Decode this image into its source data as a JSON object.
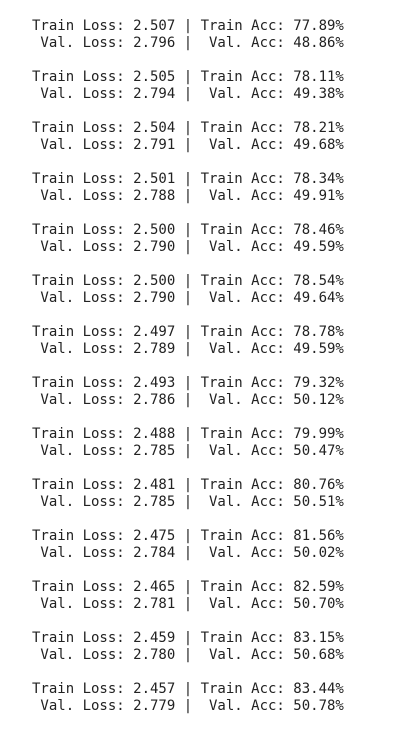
{
  "log": {
    "blocks": [
      {
        "train": "Train Loss: 2.507 | Train Acc: 77.89%",
        "val": " Val. Loss: 2.796 |  Val. Acc: 48.86%"
      },
      {
        "train": "Train Loss: 2.505 | Train Acc: 78.11%",
        "val": " Val. Loss: 2.794 |  Val. Acc: 49.38%"
      },
      {
        "train": "Train Loss: 2.504 | Train Acc: 78.21%",
        "val": " Val. Loss: 2.791 |  Val. Acc: 49.68%"
      },
      {
        "train": "Train Loss: 2.501 | Train Acc: 78.34%",
        "val": " Val. Loss: 2.788 |  Val. Acc: 49.91%"
      },
      {
        "train": "Train Loss: 2.500 | Train Acc: 78.46%",
        "val": " Val. Loss: 2.790 |  Val. Acc: 49.59%"
      },
      {
        "train": "Train Loss: 2.500 | Train Acc: 78.54%",
        "val": " Val. Loss: 2.790 |  Val. Acc: 49.64%"
      },
      {
        "train": "Train Loss: 2.497 | Train Acc: 78.78%",
        "val": " Val. Loss: 2.789 |  Val. Acc: 49.59%"
      },
      {
        "train": "Train Loss: 2.493 | Train Acc: 79.32%",
        "val": " Val. Loss: 2.786 |  Val. Acc: 50.12%"
      },
      {
        "train": "Train Loss: 2.488 | Train Acc: 79.99%",
        "val": " Val. Loss: 2.785 |  Val. Acc: 50.47%"
      },
      {
        "train": "Train Loss: 2.481 | Train Acc: 80.76%",
        "val": " Val. Loss: 2.785 |  Val. Acc: 50.51%"
      },
      {
        "train": "Train Loss: 2.475 | Train Acc: 81.56%",
        "val": " Val. Loss: 2.784 |  Val. Acc: 50.02%"
      },
      {
        "train": "Train Loss: 2.465 | Train Acc: 82.59%",
        "val": " Val. Loss: 2.781 |  Val. Acc: 50.70%"
      },
      {
        "train": "Train Loss: 2.459 | Train Acc: 83.15%",
        "val": " Val. Loss: 2.780 |  Val. Acc: 50.68%"
      },
      {
        "train": "Train Loss: 2.457 | Train Acc: 83.44%",
        "val": " Val. Loss: 2.779 |  Val. Acc: 50.78%"
      }
    ]
  }
}
